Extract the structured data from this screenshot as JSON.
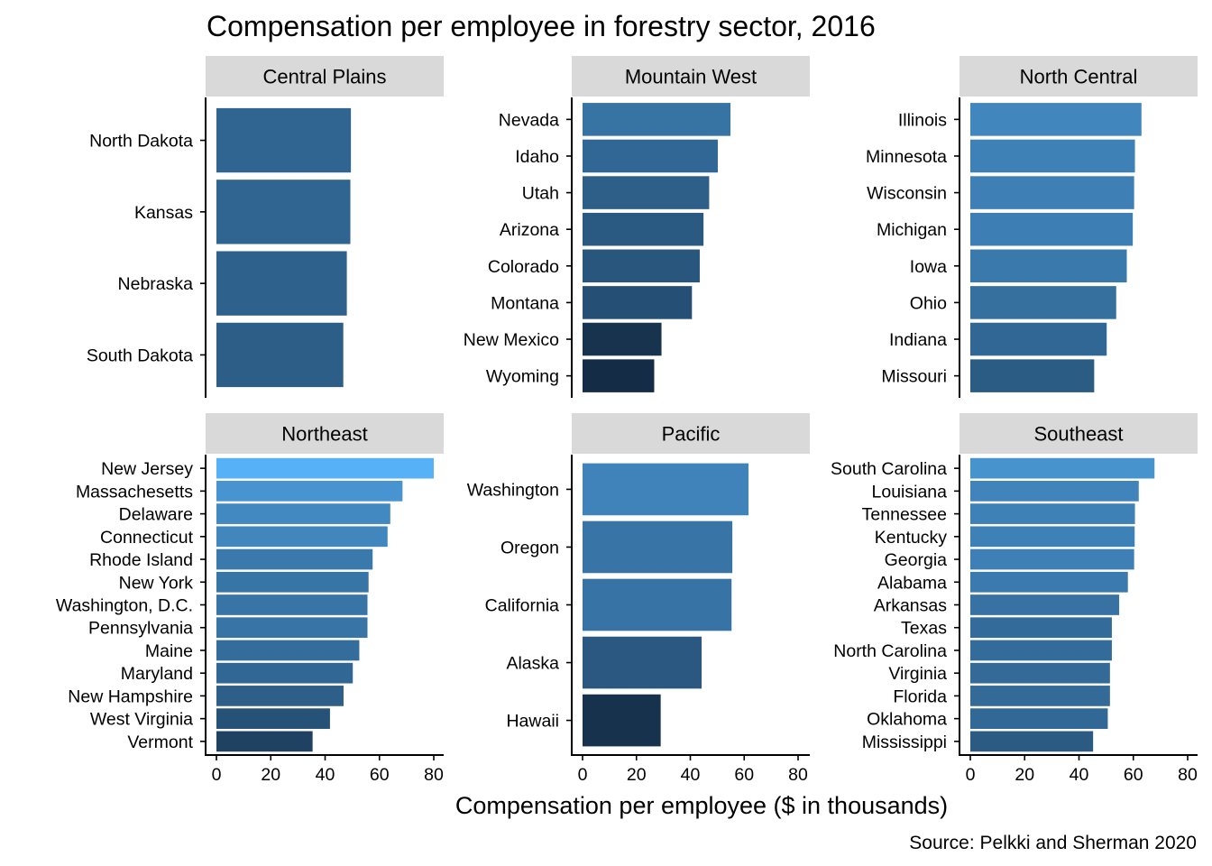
{
  "chart_data": {
    "type": "bar",
    "orientation": "horizontal",
    "title": "Compensation per employee in forestry sector, 2016",
    "xlabel": "Compensation per employee ($ in thousands)",
    "ylabel": "",
    "caption": "Source: Pelkki and Sherman 2020",
    "xlim": [
      0,
      80
    ],
    "x_ticks": [
      0,
      20,
      40,
      60,
      80
    ],
    "grid": false,
    "color_scale": {
      "low": "#132B43",
      "high": "#56B1F7",
      "domain": [
        26,
        80
      ]
    },
    "panels": [
      {
        "name": "Central Plains",
        "categories": [
          "North Dakota",
          "Kansas",
          "Nebraska",
          "South Dakota"
        ],
        "values": [
          49.5,
          49.3,
          48.0,
          46.7
        ]
      },
      {
        "name": "Mountain West",
        "categories": [
          "Nevada",
          "Idaho",
          "Utah",
          "Arizona",
          "Colorado",
          "Montana",
          "New Mexico",
          "Wyoming"
        ],
        "values": [
          54.9,
          50.2,
          47.0,
          44.9,
          43.5,
          40.6,
          29.3,
          26.6
        ]
      },
      {
        "name": "North Central",
        "categories": [
          "Illinois",
          "Minnesota",
          "Wisconsin",
          "Michigan",
          "Iowa",
          "Ohio",
          "Indiana",
          "Missouri"
        ],
        "values": [
          63.0,
          60.6,
          60.3,
          59.8,
          57.6,
          53.7,
          50.2,
          45.6
        ]
      },
      {
        "name": "Northeast",
        "categories": [
          "New Jersey",
          "Massachesetts",
          "Delaware",
          "Connecticut",
          "Rhode Island",
          "New York",
          "Washington, D.C.",
          "Pennsylvania",
          "Maine",
          "Maryland",
          "New Hampshire",
          "West Virginia",
          "Vermont"
        ],
        "values": [
          80.0,
          68.5,
          64.0,
          63.0,
          57.5,
          56.0,
          55.6,
          55.6,
          52.6,
          50.2,
          46.8,
          41.8,
          35.4
        ]
      },
      {
        "name": "Pacific",
        "categories": [
          "Washington",
          "Oregon",
          "California",
          "Alaska",
          "Hawaii"
        ],
        "values": [
          61.6,
          55.6,
          55.3,
          44.2,
          29.0
        ]
      },
      {
        "name": "Southeast",
        "categories": [
          "South Carolina",
          "Louisiana",
          "Tennessee",
          "Kentucky",
          "Georgia",
          "Alabama",
          "Arkansas",
          "Texas",
          "North Carolina",
          "Virginia",
          "Florida",
          "Oklahoma",
          "Mississippi"
        ],
        "values": [
          67.8,
          62.0,
          60.6,
          60.5,
          60.3,
          58.0,
          54.8,
          52.1,
          52.1,
          51.4,
          51.4,
          50.6,
          45.2
        ]
      }
    ]
  }
}
